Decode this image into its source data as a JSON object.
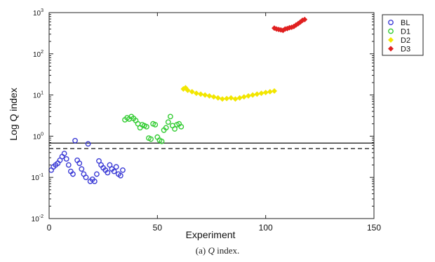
{
  "caption": {
    "prefix": "(a)",
    "symbol": "Q",
    "suffix": "index."
  },
  "chart_data": {
    "type": "scatter",
    "xlabel": "Experiment",
    "ylabel": "Log Q index",
    "xlim": [
      0,
      150
    ],
    "ylim": [
      0.01,
      1000
    ],
    "yscale": "log",
    "x_ticks": [
      0,
      50,
      100,
      150
    ],
    "y_ticks": [
      {
        "value": 0.01,
        "base": "10",
        "exp": "-2"
      },
      {
        "value": 0.1,
        "base": "10",
        "exp": "-1"
      },
      {
        "value": 1,
        "base": "10",
        "exp": "0"
      },
      {
        "value": 10,
        "base": "10",
        "exp": "1"
      },
      {
        "value": 100,
        "base": "10",
        "exp": "2"
      },
      {
        "value": 1000,
        "base": "10",
        "exp": "3"
      }
    ],
    "grid": false,
    "legend_position": "top-right",
    "reference_lines": [
      {
        "style": "solid",
        "y": 0.68
      },
      {
        "style": "dashed",
        "y": 0.5
      }
    ],
    "series": [
      {
        "name": "BL",
        "color": "#3b3bd6",
        "marker": "open-circle",
        "points": [
          [
            1,
            0.15
          ],
          [
            2,
            0.18
          ],
          [
            3,
            0.2
          ],
          [
            4,
            0.22
          ],
          [
            5,
            0.26
          ],
          [
            6,
            0.32
          ],
          [
            7,
            0.38
          ],
          [
            8,
            0.28
          ],
          [
            9,
            0.2
          ],
          [
            10,
            0.14
          ],
          [
            11,
            0.12
          ],
          [
            12,
            0.78
          ],
          [
            13,
            0.26
          ],
          [
            14,
            0.22
          ],
          [
            15,
            0.16
          ],
          [
            16,
            0.12
          ],
          [
            17,
            0.1
          ],
          [
            18,
            0.65
          ],
          [
            19,
            0.08
          ],
          [
            20,
            0.09
          ],
          [
            21,
            0.08
          ],
          [
            22,
            0.12
          ],
          [
            23,
            0.25
          ],
          [
            24,
            0.2
          ],
          [
            25,
            0.17
          ],
          [
            26,
            0.15
          ],
          [
            27,
            0.13
          ],
          [
            28,
            0.2
          ],
          [
            29,
            0.16
          ],
          [
            30,
            0.14
          ],
          [
            31,
            0.18
          ],
          [
            32,
            0.12
          ],
          [
            33,
            0.11
          ],
          [
            34,
            0.15
          ]
        ]
      },
      {
        "name": "D1",
        "color": "#33cc33",
        "marker": "open-circle",
        "points": [
          [
            35,
            2.5
          ],
          [
            36,
            2.8
          ],
          [
            37,
            2.6
          ],
          [
            38,
            3.0
          ],
          [
            39,
            2.7
          ],
          [
            40,
            2.4
          ],
          [
            41,
            2.0
          ],
          [
            42,
            1.6
          ],
          [
            43,
            1.9
          ],
          [
            44,
            1.8
          ],
          [
            45,
            1.7
          ],
          [
            46,
            0.9
          ],
          [
            47,
            0.85
          ],
          [
            48,
            2.0
          ],
          [
            49,
            1.9
          ],
          [
            50,
            0.95
          ],
          [
            51,
            0.8
          ],
          [
            52,
            0.75
          ],
          [
            53,
            1.4
          ],
          [
            54,
            1.6
          ],
          [
            55,
            2.2
          ],
          [
            56,
            3.0
          ],
          [
            57,
            1.8
          ],
          [
            58,
            1.5
          ],
          [
            59,
            1.9
          ],
          [
            60,
            2.0
          ],
          [
            61,
            1.7
          ]
        ]
      },
      {
        "name": "D2",
        "color": "#f2e600",
        "marker": "filled-diamond",
        "points": [
          [
            62,
            14
          ],
          [
            63,
            15
          ],
          [
            64,
            13
          ],
          [
            66,
            12
          ],
          [
            68,
            11
          ],
          [
            70,
            10.5
          ],
          [
            72,
            10
          ],
          [
            74,
            9.5
          ],
          [
            76,
            9
          ],
          [
            78,
            8.5
          ],
          [
            80,
            8
          ],
          [
            82,
            8.2
          ],
          [
            84,
            8.5
          ],
          [
            86,
            8
          ],
          [
            88,
            8.5
          ],
          [
            90,
            9
          ],
          [
            92,
            9.5
          ],
          [
            94,
            10
          ],
          [
            96,
            10.5
          ],
          [
            98,
            11
          ],
          [
            100,
            11.5
          ],
          [
            102,
            12
          ],
          [
            104,
            12.5
          ]
        ]
      },
      {
        "name": "D3",
        "color": "#e02020",
        "marker": "filled-diamond",
        "points": [
          [
            104,
            420
          ],
          [
            105,
            400
          ],
          [
            106,
            390
          ],
          [
            107,
            380
          ],
          [
            108,
            370
          ],
          [
            109,
            400
          ],
          [
            110,
            410
          ],
          [
            111,
            430
          ],
          [
            112,
            440
          ],
          [
            113,
            460
          ],
          [
            114,
            500
          ],
          [
            115,
            540
          ],
          [
            116,
            590
          ],
          [
            117,
            650
          ],
          [
            118,
            680
          ]
        ]
      }
    ]
  }
}
